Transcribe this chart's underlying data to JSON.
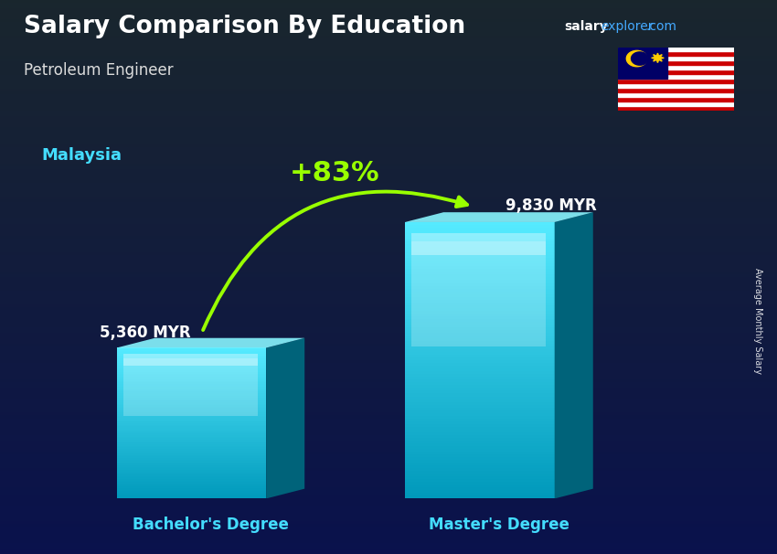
{
  "title": "Salary Comparison By Education",
  "subtitle": "Petroleum Engineer",
  "country": "Malaysia",
  "site_salary": "salary",
  "site_explorer": "explorer",
  "site_com": ".com",
  "categories": [
    "Bachelor's Degree",
    "Master's Degree"
  ],
  "values": [
    5360,
    9830
  ],
  "labels": [
    "5,360 MYR",
    "9,830 MYR"
  ],
  "pct_change": "+83%",
  "bar_color_main": "#00d8f0",
  "bar_color_light": "#55eaff",
  "bar_color_dark": "#0099bb",
  "bar_color_top": "#88f5ff",
  "title_color": "#ffffff",
  "subtitle_color": "#dddddd",
  "country_color": "#44ddff",
  "label_color": "#ffffff",
  "xticklabel_color": "#44ddff",
  "pct_color": "#99ff00",
  "site_color_salary": "#ffffff",
  "site_color_explorer": "#44aaff",
  "site_color_com": "#44aaff",
  "ylabel_text": "Average Monthly Salary",
  "bg_dark": "#0a1628",
  "bg_mid": "#0d2040",
  "figwidth": 8.5,
  "figheight": 6.06,
  "dpi": 100
}
